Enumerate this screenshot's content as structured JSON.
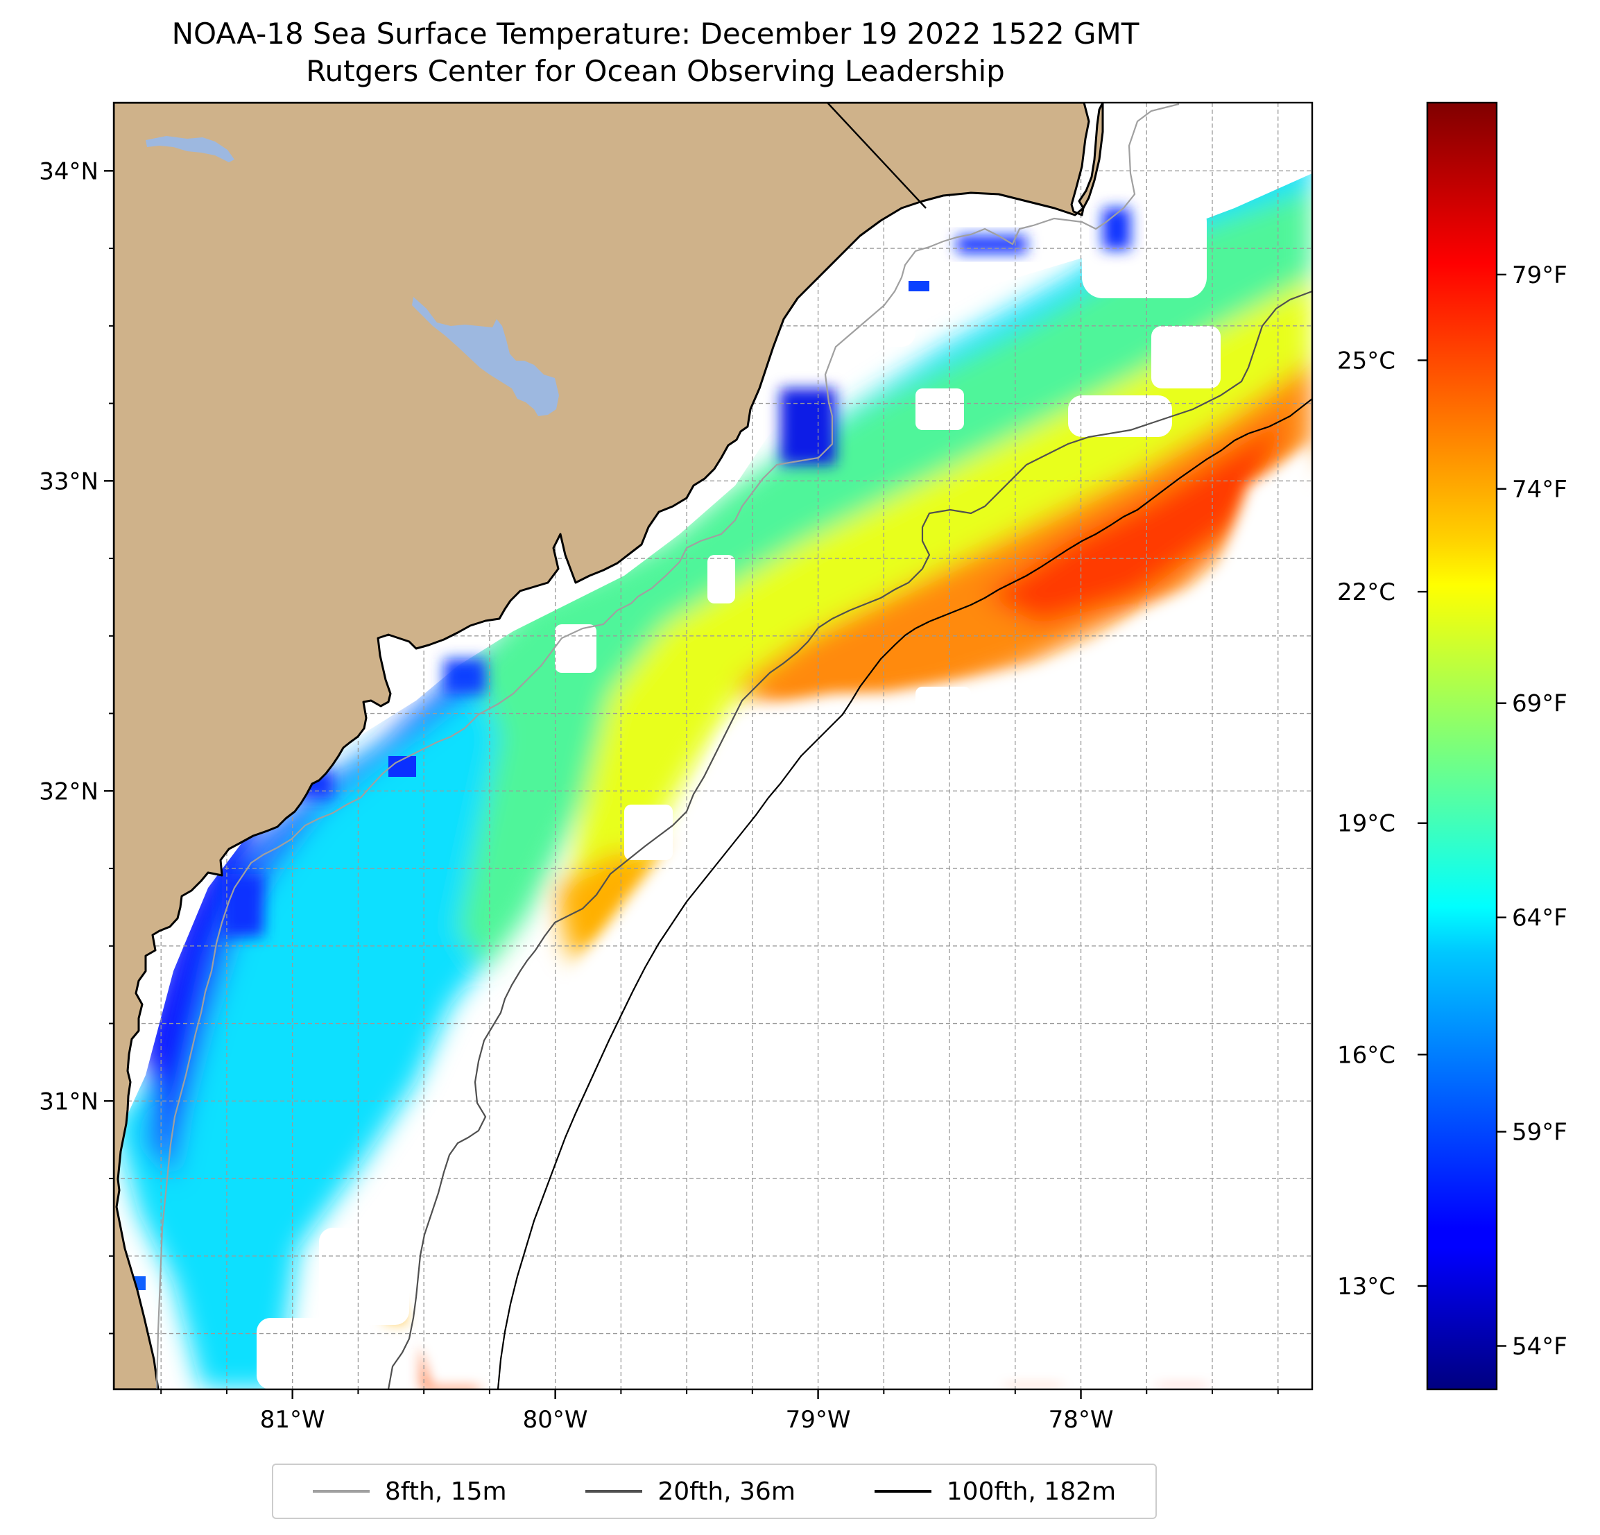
{
  "title": {
    "line1": "NOAA-18 Sea Surface Temperature: December 19 2022 1522 GMT",
    "line2": "Rutgers Center for Ocean Observing Leadership"
  },
  "map": {
    "lon_range": [
      -81.68,
      -77.12
    ],
    "lat_range": [
      30.07,
      34.22
    ],
    "lon_ticks": [
      {
        "value": -81,
        "label": "81°W"
      },
      {
        "value": -80,
        "label": "80°W"
      },
      {
        "value": -79,
        "label": "79°W"
      },
      {
        "value": -78,
        "label": "78°W"
      }
    ],
    "lat_ticks": [
      {
        "value": 31,
        "label": "31°N"
      },
      {
        "value": 32,
        "label": "32°N"
      },
      {
        "value": 33,
        "label": "33°N"
      },
      {
        "value": 34,
        "label": "34°N"
      }
    ],
    "grid": "dashed, 0.25° spacing",
    "land_color": "#cfb28a",
    "lake_color": "#9db8e0"
  },
  "colorbar": {
    "colormap": "jet",
    "celsius_ticks": [
      "13°C",
      "16°C",
      "19°C",
      "22°C",
      "25°C"
    ],
    "fahrenheit_ticks": [
      "54°F",
      "59°F",
      "64°F",
      "69°F",
      "74°F",
      "79°F"
    ]
  },
  "legend": [
    {
      "label": "8fth, 15m",
      "color": "#a0a0a0"
    },
    {
      "label": "20fth, 36m",
      "color": "#505050"
    },
    {
      "label": "100fth, 182m",
      "color": "#000000"
    }
  ]
}
